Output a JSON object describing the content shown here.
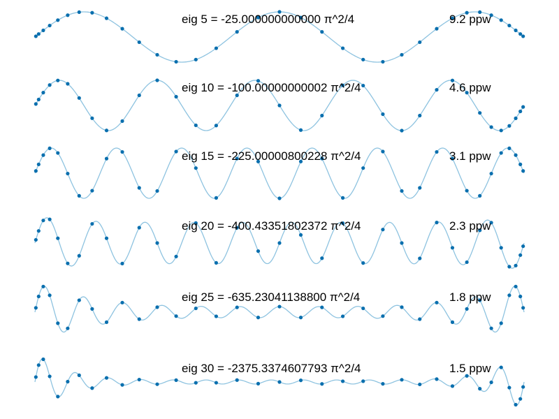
{
  "colors": {
    "curve": "#8ec3e0",
    "points": "#0a6fae",
    "background": "#ffffff"
  },
  "chart_data": {
    "type": "line",
    "subplots": 6,
    "x_domain": [
      -1,
      1
    ],
    "axes_visible": false,
    "grid": false,
    "panels": [
      {
        "eig_label": "eig 5 = -25.000000000000 π^2/4",
        "ppw_label": "9.2 ppw",
        "mode": 5
      },
      {
        "eig_label": "eig 10 = -100.00000000002 π^2/4",
        "ppw_label": "4.6 ppw",
        "mode": 10
      },
      {
        "eig_label": "eig 15 = -225.00000800228 π^2/4",
        "ppw_label": "3.1 ppw",
        "mode": 15
      },
      {
        "eig_label": "eig 20 = -400.43351802372 π^2/4",
        "ppw_label": "2.3 ppw",
        "mode": 20
      },
      {
        "eig_label": "eig 25 = -635.23041138800 π^2/4",
        "ppw_label": "1.8 ppw",
        "mode": 25
      },
      {
        "eig_label": "eig 30 = -2375.3374607793 π^2/4",
        "ppw_label": "1.5 ppw",
        "mode": 30
      }
    ]
  }
}
